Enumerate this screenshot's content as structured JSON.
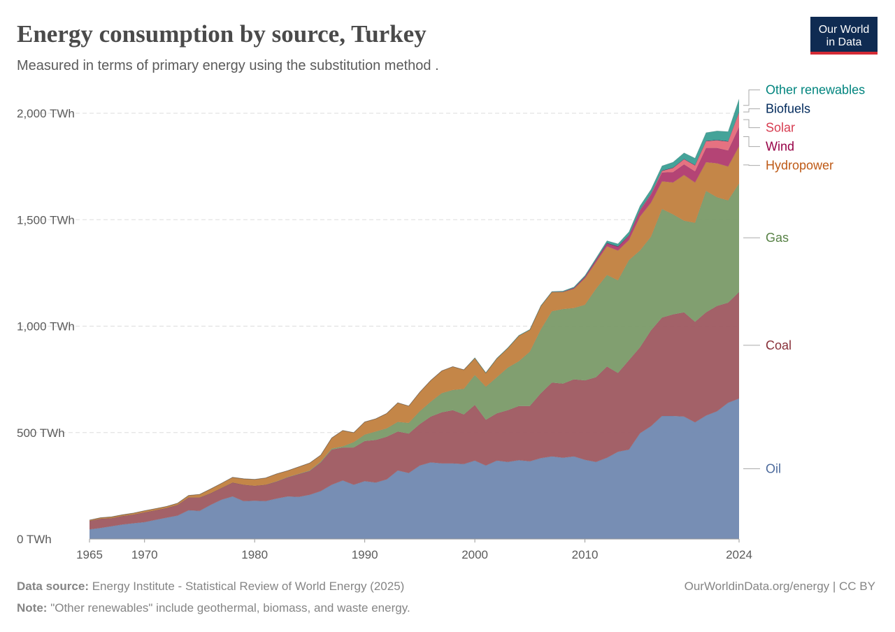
{
  "chart_data": {
    "type": "stacked_area",
    "title": "Energy consumption by source, Turkey",
    "subtitle": "Measured in terms of primary energy using the substitution method .",
    "logo": [
      "Our World",
      "in Data"
    ],
    "source_label": "Data source:",
    "source": "Energy Institute - Statistical Review of World Energy (2025)",
    "credit": "OurWorldinData.org/energy | CC BY",
    "note_label": "Note:",
    "note": "\"Other renewables\" include geothermal, biomass, and waste energy.",
    "x": [
      1965,
      1966,
      1967,
      1968,
      1969,
      1970,
      1971,
      1972,
      1973,
      1974,
      1975,
      1976,
      1977,
      1978,
      1979,
      1980,
      1981,
      1982,
      1983,
      1984,
      1985,
      1986,
      1987,
      1988,
      1989,
      1990,
      1991,
      1992,
      1993,
      1994,
      1995,
      1996,
      1997,
      1998,
      1999,
      2000,
      2001,
      2002,
      2003,
      2004,
      2005,
      2006,
      2007,
      2008,
      2009,
      2010,
      2011,
      2012,
      2013,
      2014,
      2015,
      2016,
      2017,
      2018,
      2019,
      2020,
      2021,
      2022,
      2023,
      2024
    ],
    "xlim": [
      1965,
      2024
    ],
    "xticks": [
      1965,
      1970,
      1980,
      1990,
      2000,
      2010,
      2024
    ],
    "ylim": [
      0,
      2000
    ],
    "yticks": [
      {
        "value": 0,
        "label": "0 TWh"
      },
      {
        "value": 500,
        "label": "500 TWh"
      },
      {
        "value": 1000,
        "label": "1,000 TWh"
      },
      {
        "value": 1500,
        "label": "1,500 TWh"
      },
      {
        "value": 2000,
        "label": "2,000 TWh"
      }
    ],
    "grid": true,
    "series": [
      {
        "name": "Oil",
        "color": "#7088b0",
        "label_color": "#4c6a9c",
        "values": [
          45,
          52,
          60,
          68,
          74,
          79,
          90,
          100,
          110,
          135,
          132,
          160,
          185,
          200,
          178,
          180,
          178,
          190,
          200,
          198,
          208,
          225,
          255,
          275,
          255,
          272,
          265,
          280,
          322,
          310,
          345,
          360,
          355,
          355,
          352,
          368,
          345,
          368,
          362,
          370,
          365,
          380,
          388,
          382,
          388,
          372,
          362,
          382,
          410,
          420,
          497,
          530,
          578,
          578,
          575,
          548,
          580,
          600,
          640,
          660
        ]
      },
      {
        "name": "Coal",
        "color": "#9e5860",
        "label_color": "#883039",
        "values": [
          40,
          43,
          38,
          40,
          41,
          46,
          45,
          45,
          50,
          60,
          63,
          55,
          55,
          65,
          77,
          70,
          77,
          80,
          90,
          107,
          112,
          135,
          165,
          155,
          175,
          188,
          200,
          200,
          183,
          185,
          195,
          215,
          240,
          250,
          233,
          262,
          215,
          222,
          243,
          255,
          260,
          305,
          347,
          348,
          362,
          373,
          398,
          428,
          370,
          420,
          403,
          450,
          462,
          477,
          490,
          472,
          485,
          495,
          470,
          500
        ]
      },
      {
        "name": "Gas",
        "color": "#7a9a68",
        "label_color": "#578145",
        "values": [
          0,
          0,
          0,
          0,
          0,
          0,
          0,
          0,
          0,
          0,
          0,
          0,
          0,
          0,
          0,
          0,
          0,
          1,
          1,
          1,
          2,
          4,
          5,
          5,
          25,
          30,
          40,
          40,
          45,
          50,
          60,
          70,
          90,
          95,
          120,
          140,
          155,
          170,
          200,
          210,
          255,
          300,
          335,
          350,
          335,
          355,
          415,
          430,
          435,
          470,
          455,
          440,
          510,
          470,
          430,
          465,
          570,
          510,
          480,
          510
        ]
      },
      {
        "name": "Hydropower",
        "color": "#c17f3e",
        "label_color": "#be5915",
        "values": [
          4,
          5,
          6,
          6,
          7,
          8,
          8,
          8,
          8,
          10,
          15,
          20,
          22,
          25,
          28,
          30,
          32,
          35,
          30,
          33,
          35,
          30,
          50,
          75,
          45,
          60,
          60,
          70,
          90,
          80,
          90,
          100,
          105,
          110,
          90,
          80,
          65,
          88,
          92,
          120,
          103,
          110,
          90,
          80,
          90,
          125,
          125,
          135,
          140,
          95,
          160,
          160,
          130,
          150,
          215,
          190,
          135,
          160,
          160,
          175
        ]
      },
      {
        "name": "Wind",
        "color": "#b03a6e",
        "label_color": "#970046",
        "values": [
          0,
          0,
          0,
          0,
          0,
          0,
          0,
          0,
          0,
          0,
          0,
          0,
          0,
          0,
          0,
          0,
          0,
          0,
          0,
          0,
          0,
          0,
          0,
          0,
          0,
          0,
          0,
          0,
          0,
          0,
          0,
          0,
          0,
          0,
          0,
          0,
          0,
          0,
          0,
          0,
          0,
          0,
          1,
          2,
          4,
          7,
          11,
          14,
          18,
          20,
          28,
          37,
          42,
          48,
          50,
          52,
          67,
          72,
          75,
          90
        ]
      },
      {
        "name": "Solar",
        "color": "#e56a7a",
        "label_color": "#d73c50",
        "values": [
          0,
          0,
          0,
          0,
          0,
          0,
          0,
          0,
          0,
          0,
          0,
          0,
          0,
          0,
          0,
          0,
          0,
          0,
          0,
          0,
          0,
          0,
          0,
          0,
          0,
          0,
          0,
          0,
          0,
          0,
          0,
          0,
          0,
          0,
          0,
          0,
          0,
          0,
          0,
          0,
          0,
          0,
          0,
          0,
          0,
          0,
          0,
          0,
          0,
          1,
          2,
          3,
          7,
          20,
          24,
          28,
          32,
          36,
          42,
          70
        ]
      },
      {
        "name": "Biofuels",
        "color": "#1a2b5a",
        "label_color": "#00295b",
        "values": [
          0,
          0,
          0,
          0,
          0,
          0,
          0,
          0,
          0,
          0,
          0,
          0,
          0,
          0,
          0,
          0,
          0,
          0,
          0,
          0,
          0,
          0,
          0,
          0,
          0,
          0,
          0,
          0,
          0,
          0,
          0,
          0,
          0,
          0,
          0,
          0,
          0,
          0,
          0,
          0,
          0,
          0,
          0,
          0,
          1,
          1,
          1,
          2,
          2,
          2,
          2,
          2,
          2,
          2,
          2,
          2,
          2,
          2,
          2,
          2
        ]
      },
      {
        "name": "Other renewables",
        "color": "#3a9e94",
        "label_color": "#00847e",
        "values": [
          0,
          0,
          0,
          0,
          0,
          0,
          0,
          0,
          0,
          0,
          0,
          0,
          0,
          0,
          0,
          0,
          0,
          0,
          0,
          0,
          0,
          0,
          0,
          0,
          0,
          0,
          0,
          0,
          0,
          0,
          0,
          0,
          0,
          0,
          0,
          2,
          2,
          2,
          2,
          2,
          2,
          2,
          2,
          3,
          4,
          5,
          7,
          10,
          12,
          15,
          18,
          20,
          22,
          25,
          28,
          32,
          38,
          42,
          45,
          60
        ]
      }
    ]
  }
}
